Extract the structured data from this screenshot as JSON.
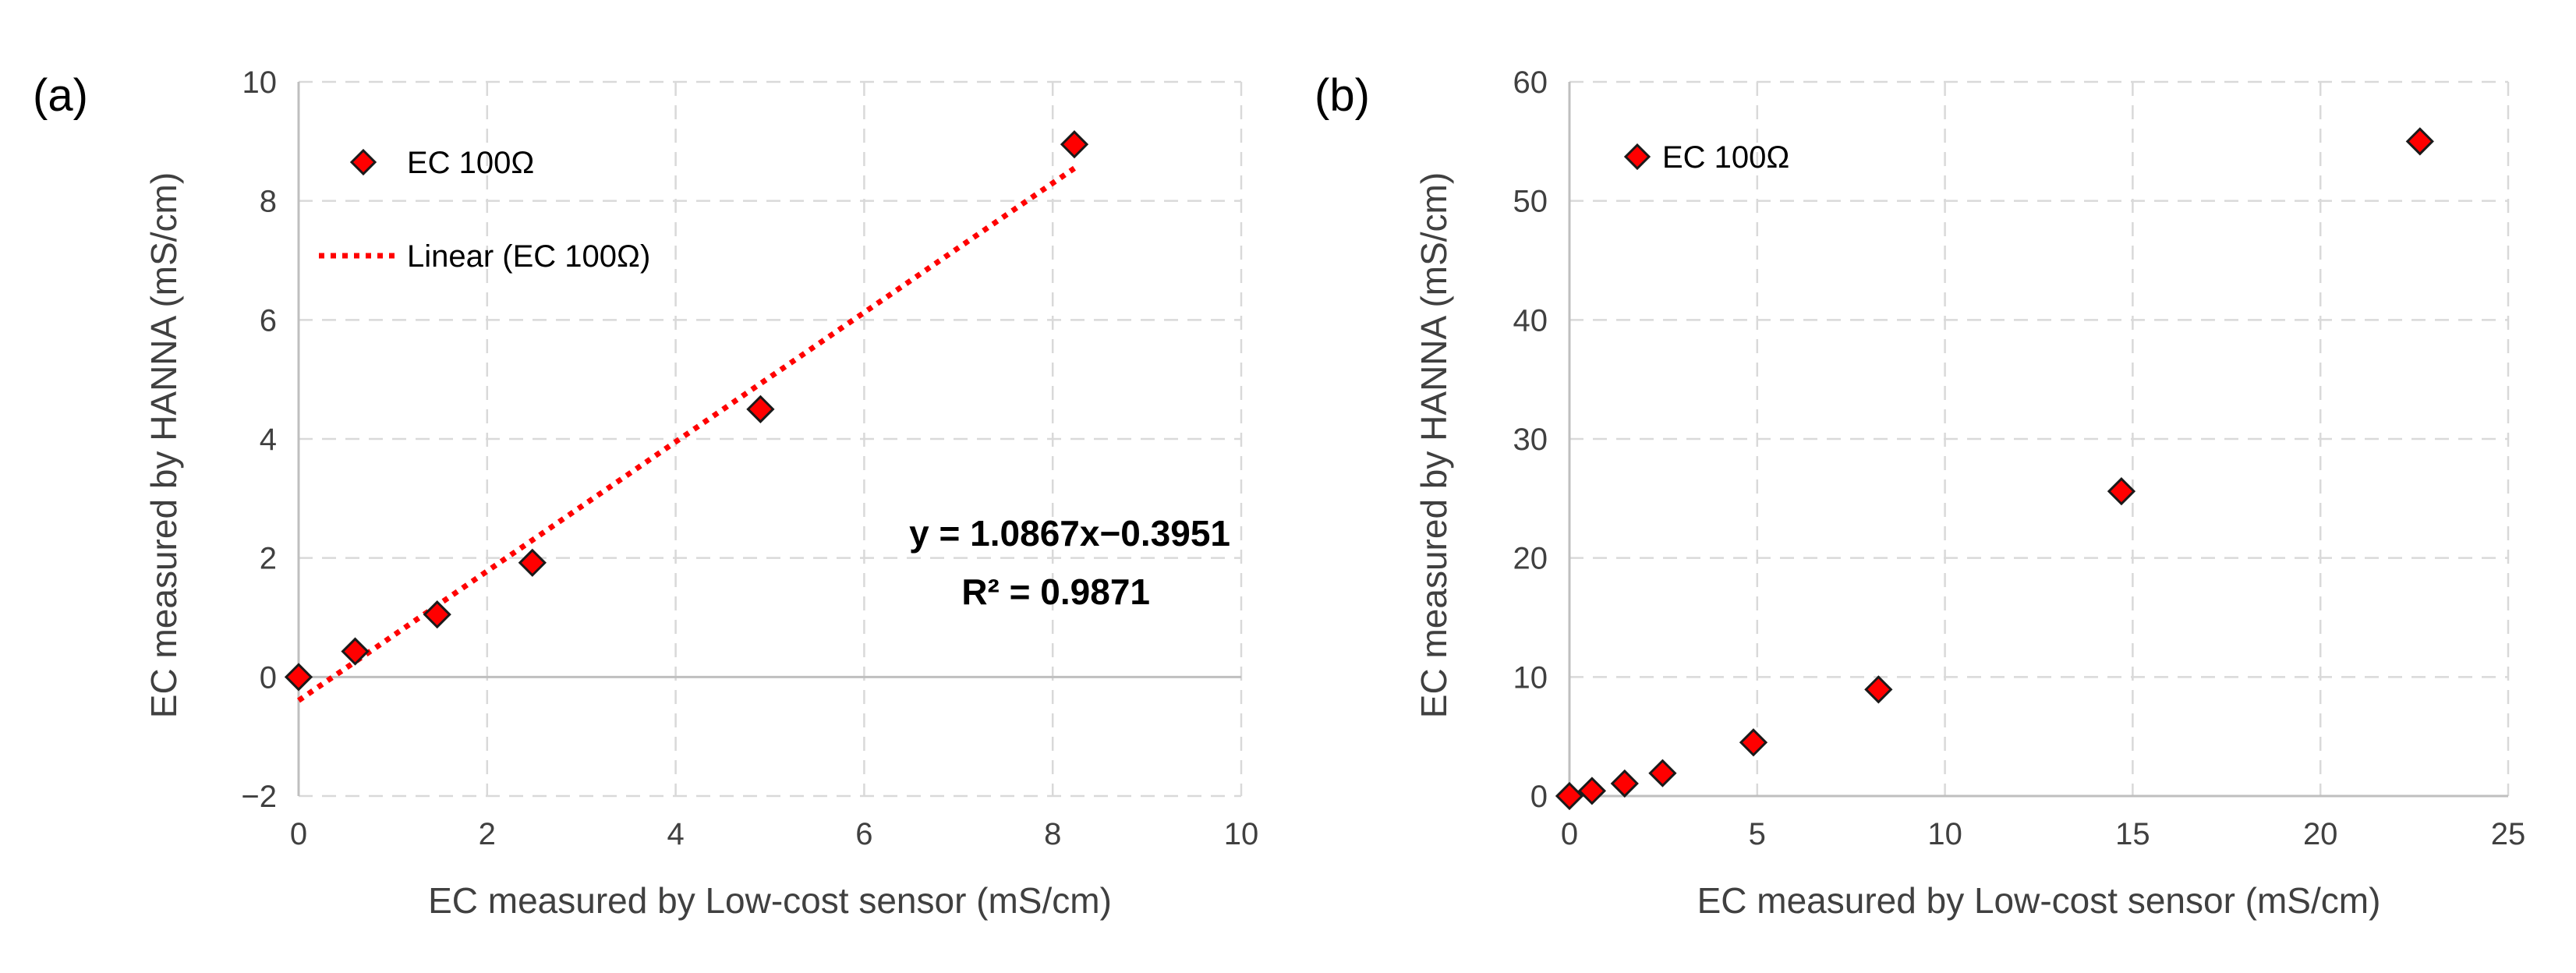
{
  "chart_data": [
    {
      "type": "scatter",
      "panel_label": "(a)",
      "xlabel": "EC measured by Low-cost sensor (mS/cm)",
      "ylabel": "EC measured by HANNA (mS/cm)",
      "xlim": [
        0,
        10
      ],
      "ylim": [
        -2,
        10
      ],
      "xticks": [
        0,
        2,
        4,
        6,
        8,
        10
      ],
      "yticks": [
        -2,
        0,
        2,
        4,
        6,
        8,
        10
      ],
      "xtick_labels": [
        "0",
        "2",
        "4",
        "6",
        "8",
        "10"
      ],
      "ytick_labels": [
        "−2",
        "0",
        "2",
        "4",
        "6",
        "8",
        "10"
      ],
      "grid": true,
      "legend_position": "top-left",
      "series": [
        {
          "name": "EC 100Ω",
          "marker": "diamond",
          "color": "#ff0000",
          "x": [
            0.0,
            0.6,
            1.47,
            2.48,
            4.9,
            8.23
          ],
          "y": [
            0.0,
            0.43,
            1.05,
            1.92,
            4.5,
            8.95
          ]
        }
      ],
      "trendline": {
        "name": "Linear (EC 100Ω)",
        "type": "linear",
        "style": "dotted",
        "color": "#ff0000",
        "slope": 1.0867,
        "intercept": -0.3951,
        "x_range": [
          0,
          8.23
        ]
      },
      "annotations": [
        "y = 1.0867x−0.3951",
        "R² = 0.9871"
      ]
    },
    {
      "type": "scatter",
      "panel_label": "(b)",
      "xlabel": "EC measured by Low-cost sensor (mS/cm)",
      "ylabel": "EC measured by HANNA (mS/cm)",
      "xlim": [
        0,
        25
      ],
      "ylim": [
        0,
        60
      ],
      "xticks": [
        0,
        5,
        10,
        15,
        20,
        25
      ],
      "yticks": [
        0,
        10,
        20,
        30,
        40,
        50,
        60
      ],
      "xtick_labels": [
        "0",
        "5",
        "10",
        "15",
        "20",
        "25"
      ],
      "ytick_labels": [
        "0",
        "10",
        "20",
        "30",
        "40",
        "50",
        "60"
      ],
      "grid": true,
      "legend_position": "top-left",
      "series": [
        {
          "name": "EC 100Ω",
          "marker": "diamond",
          "color": "#ff0000",
          "x": [
            0.0,
            0.6,
            1.47,
            2.48,
            4.9,
            8.23,
            14.7,
            22.65
          ],
          "y": [
            0.0,
            0.43,
            1.05,
            1.92,
            4.5,
            8.95,
            25.6,
            55.0
          ]
        }
      ]
    }
  ]
}
